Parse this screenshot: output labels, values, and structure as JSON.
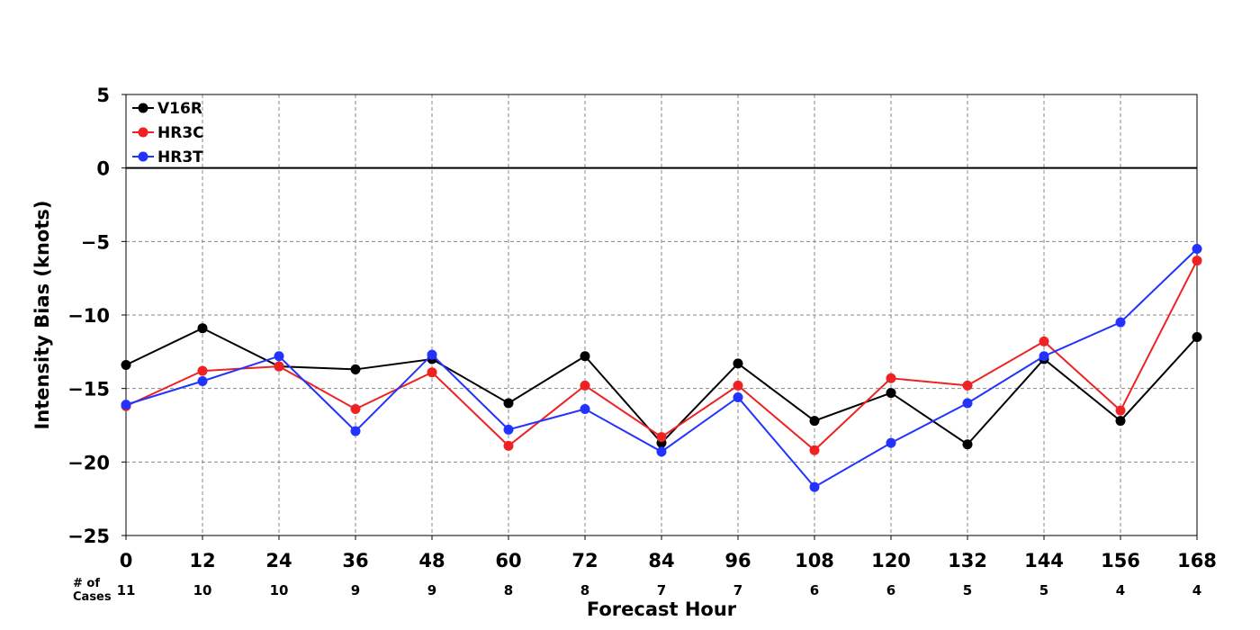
{
  "chart_data": {
    "type": "line",
    "xlabel": "Forecast Hour",
    "ylabel": "Intensity Bias (knots)",
    "x": [
      0,
      12,
      24,
      36,
      48,
      60,
      72,
      84,
      96,
      108,
      120,
      132,
      144,
      156,
      168
    ],
    "xlim": [
      0,
      168
    ],
    "ylim": [
      -25,
      5
    ],
    "yticks": [
      5,
      0,
      -5,
      -10,
      -15,
      -20,
      -25
    ],
    "grid": true,
    "legend_position": "top-left",
    "series": [
      {
        "name": "V16R",
        "color": "#000000",
        "values": [
          -13.4,
          -10.9,
          -13.5,
          -13.7,
          -13.0,
          -16.0,
          -12.8,
          -18.7,
          -13.3,
          -17.2,
          -15.3,
          -18.8,
          -13.0,
          -17.2,
          -11.5
        ]
      },
      {
        "name": "HR3C",
        "color": "#ee2222",
        "values": [
          -16.2,
          -13.8,
          -13.5,
          -16.4,
          -13.9,
          -18.9,
          -14.8,
          -18.3,
          -14.8,
          -19.2,
          -14.3,
          -14.8,
          -11.8,
          -16.5,
          -6.3
        ]
      },
      {
        "name": "HR3T",
        "color": "#2233ff",
        "values": [
          -16.1,
          -14.5,
          -12.8,
          -17.9,
          -12.7,
          -17.8,
          -16.4,
          -19.3,
          -15.6,
          -21.7,
          -18.7,
          -16.0,
          -12.8,
          -10.5,
          -5.5
        ]
      }
    ],
    "cases_label": "# of\nCases",
    "cases": [
      11,
      10,
      10,
      9,
      9,
      8,
      8,
      7,
      7,
      6,
      6,
      5,
      5,
      4,
      4
    ]
  }
}
